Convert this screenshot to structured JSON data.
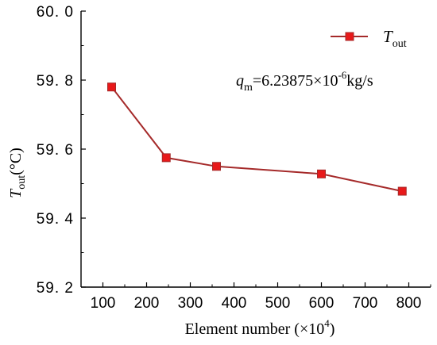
{
  "chart_data": {
    "type": "line",
    "x": [
      120,
      245,
      360,
      600,
      785
    ],
    "series": [
      {
        "name": "T_out",
        "name_main": "T",
        "name_sub": "out",
        "values": [
          59.78,
          59.575,
          59.55,
          59.528,
          59.478
        ],
        "color": "#a52a2a",
        "marker_color": "#e8191a"
      }
    ],
    "xlim": [
      50,
      850
    ],
    "ylim": [
      59.2,
      60.0
    ],
    "x_ticks": [
      100,
      200,
      300,
      400,
      500,
      600,
      700,
      800
    ],
    "y_ticks": [
      59.2,
      59.4,
      59.6,
      59.8,
      60.0
    ],
    "x_tick_labels": [
      "100",
      "200",
      "300",
      "400",
      "500",
      "600",
      "700",
      "800"
    ],
    "y_tick_labels": [
      "59. 2",
      "59. 4",
      "59. 6",
      "59. 8",
      "60. 0"
    ],
    "xlabel": {
      "prefix": "Element number (×10",
      "sup": "4",
      "suffix": ")"
    },
    "ylabel": {
      "main": "T",
      "sub": "out",
      "suffix": "(°C)"
    },
    "annotation": {
      "main": "q",
      "sub": "m",
      "value": "=6.23875×10",
      "sup": "-6",
      "unit": "kg/s"
    },
    "legend_position": "top-right",
    "grid": false,
    "title": ""
  }
}
